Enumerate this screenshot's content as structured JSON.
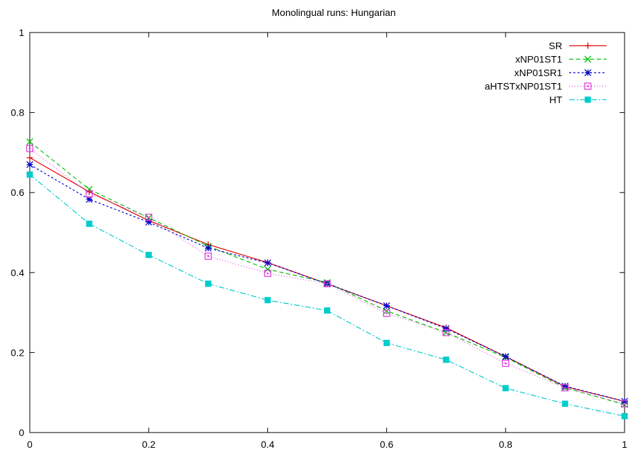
{
  "chart_data": {
    "type": "line",
    "title": "Monolingual runs: Hungarian",
    "xlabel": "",
    "ylabel": "",
    "xlim": [
      0,
      1
    ],
    "ylim": [
      0,
      1
    ],
    "x_ticks": [
      0,
      0.2,
      0.4,
      0.6,
      0.8,
      1
    ],
    "x_tick_labels": [
      "0",
      "0.2",
      "0.4",
      "0.6",
      "0.8",
      "1"
    ],
    "y_ticks": [
      0,
      0.2,
      0.4,
      0.6,
      0.8,
      1
    ],
    "y_tick_labels": [
      "0",
      "0.2",
      "0.4",
      "0.6",
      "0.8",
      "1"
    ],
    "grid": false,
    "legend_position": "top-right",
    "x": [
      0,
      0.1,
      0.2,
      0.3,
      0.4,
      0.5,
      0.6,
      0.7,
      0.8,
      0.9,
      1
    ],
    "series": [
      {
        "name": "SR",
        "color": "#e00000",
        "marker": "plus",
        "dash": "",
        "values": [
          0.687,
          0.602,
          0.53,
          0.47,
          0.425,
          0.372,
          0.317,
          0.262,
          0.19,
          0.115,
          0.078
        ]
      },
      {
        "name": "xNP01ST1",
        "color": "#00c000",
        "marker": "cross",
        "dash": "6,4",
        "values": [
          0.727,
          0.608,
          0.537,
          0.466,
          0.408,
          0.375,
          0.304,
          0.25,
          0.188,
          0.112,
          0.07
        ]
      },
      {
        "name": "xNP01SR1",
        "color": "#0000cc",
        "marker": "star",
        "dash": "3,3",
        "values": [
          0.67,
          0.583,
          0.526,
          0.461,
          0.424,
          0.372,
          0.317,
          0.26,
          0.19,
          0.116,
          0.078
        ]
      },
      {
        "name": "aHTSTxNP01ST1",
        "color": "#e040e0",
        "marker": "square-open",
        "dash": "1,3",
        "values": [
          0.71,
          0.597,
          0.538,
          0.441,
          0.398,
          0.372,
          0.298,
          0.25,
          0.173,
          0.112,
          0.072
        ]
      },
      {
        "name": "HT",
        "color": "#00cccc",
        "marker": "square-filled",
        "dash": "8,3,2,3",
        "values": [
          0.645,
          0.522,
          0.444,
          0.372,
          0.331,
          0.305,
          0.224,
          0.182,
          0.111,
          0.072,
          0.041
        ]
      }
    ]
  }
}
